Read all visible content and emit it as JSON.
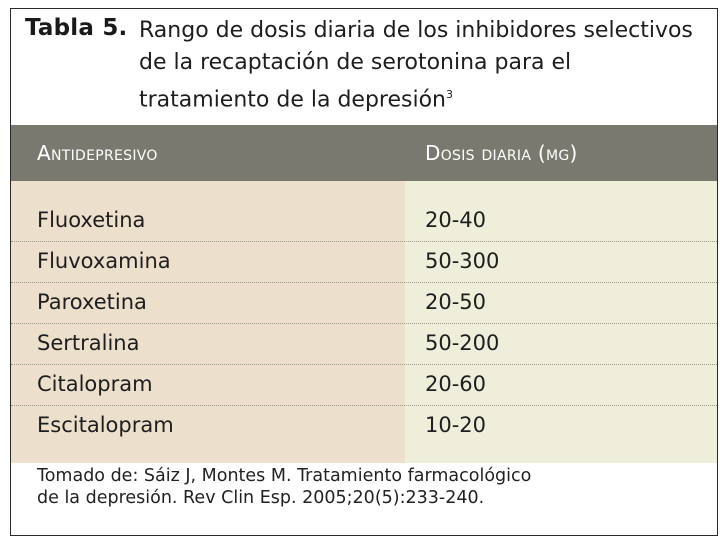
{
  "table": {
    "label": "Tabla 5.",
    "title": "Rango de dosis diaria de los inhibidores selectivos de la recaptación de serotonina para el tratamiento de la depresión",
    "title_ref": "3",
    "headers": {
      "col1": "Antidepresivo",
      "col2": "Dosis diaria (mg)"
    },
    "rows": [
      {
        "drug": "Fluoxetina",
        "dose": "20-40"
      },
      {
        "drug": "Fluvoxamina",
        "dose": "50-300"
      },
      {
        "drug": "Paroxetina",
        "dose": "20-50"
      },
      {
        "drug": "Sertralina",
        "dose": "50-200"
      },
      {
        "drug": "Citalopram",
        "dose": "20-60"
      },
      {
        "drug": "Escitalopram",
        "dose": "10-20"
      }
    ],
    "footnote_line1": "Tomado de: Sáiz J, Montes M. Tratamiento farmacológico",
    "footnote_line2": "de la depresión. Rev Clin Esp. 2005;20(5):233-240."
  },
  "colors": {
    "header_band": "#79796f",
    "col1_bg": "#ecdfcc",
    "col2_bg": "#eeeedb"
  }
}
